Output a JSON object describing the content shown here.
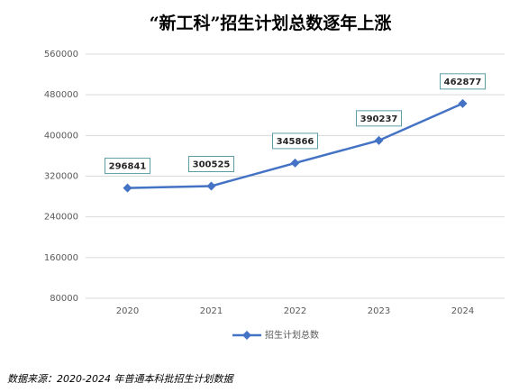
{
  "chart_data": {
    "type": "line",
    "title": "“新工科”招生计划总数逐年上涨",
    "categories": [
      "2020",
      "2021",
      "2022",
      "2023",
      "2024"
    ],
    "series": [
      {
        "name": "招生计划总数",
        "color": "#4472c4",
        "values": [
          296841,
          300525,
          345866,
          390237,
          462877
        ]
      }
    ],
    "ylim": [
      80000,
      560000
    ],
    "yticks": [
      80000,
      160000,
      240000,
      320000,
      400000,
      480000,
      560000
    ],
    "grid": true,
    "legend": "bottom",
    "data_labels": true,
    "source": "数据来源：2020-2024 年普通本科批招生计划数据"
  }
}
